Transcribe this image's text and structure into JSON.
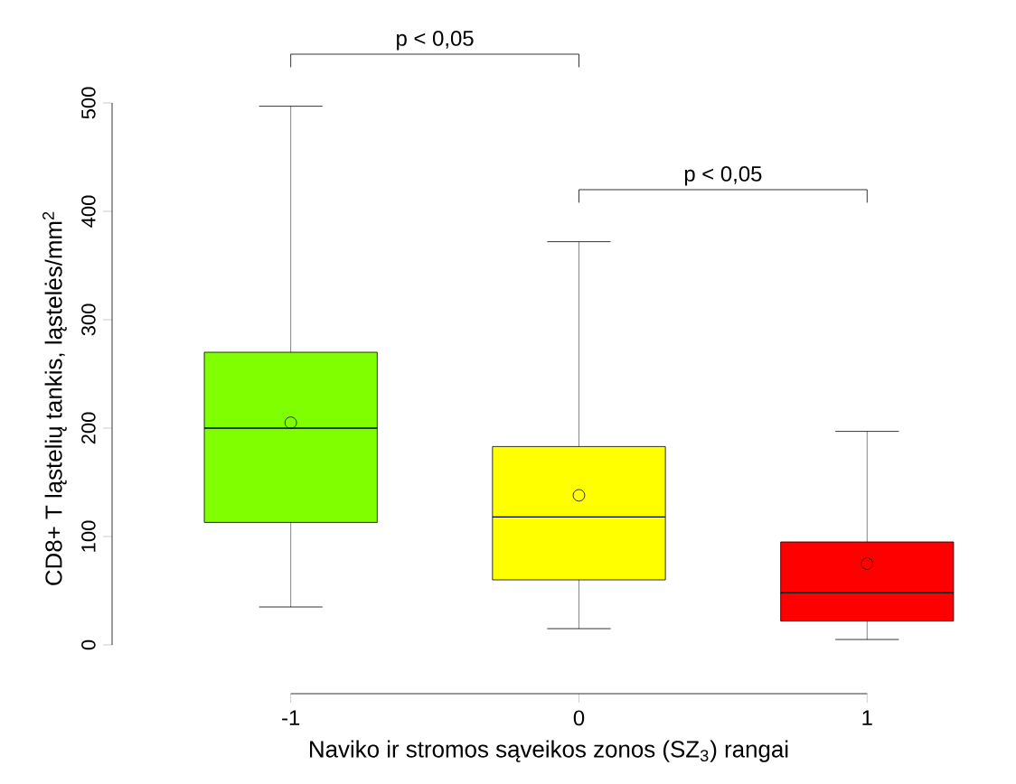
{
  "chart_data": {
    "type": "box",
    "categories": [
      "-1",
      "0",
      "1"
    ],
    "boxes": [
      {
        "low": 35,
        "q1": 113,
        "median": 200,
        "q3": 270,
        "high": 497,
        "mean": 205
      },
      {
        "low": 15,
        "q1": 60,
        "median": 118,
        "q3": 183,
        "high": 372,
        "mean": 138
      },
      {
        "low": 5,
        "q1": 22,
        "median": 48,
        "q3": 95,
        "high": 197,
        "mean": 75
      }
    ],
    "colors": [
      "#80ff00",
      "#ffff00",
      "#ff0000"
    ],
    "xlabel": "Naviko ir stromos sąveikos zonos (SZ$_{3}$) rangai",
    "ylabel": "CD8+ T ląstelių tankis, ląstelės/mm$^{2}$",
    "ylim": [
      -45,
      500
    ],
    "yticks": [
      0,
      100,
      200,
      300,
      400,
      500
    ],
    "annotations": [
      "p < 0,05",
      "p < 0,05"
    ]
  }
}
